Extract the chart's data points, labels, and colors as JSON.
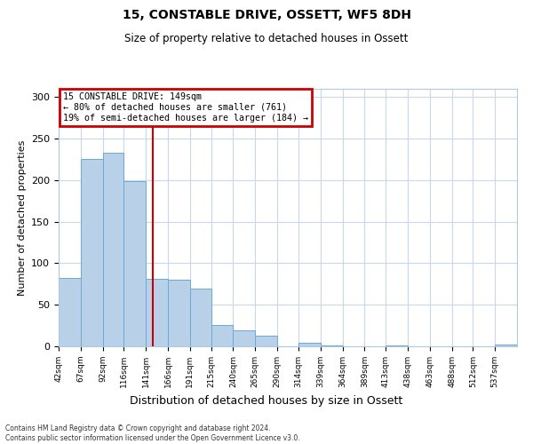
{
  "title": "15, CONSTABLE DRIVE, OSSETT, WF5 8DH",
  "subtitle": "Size of property relative to detached houses in Ossett",
  "xlabel": "Distribution of detached houses by size in Ossett",
  "ylabel": "Number of detached properties",
  "bar_edges": [
    42,
    67,
    92,
    116,
    141,
    166,
    191,
    215,
    240,
    265,
    290,
    314,
    339,
    364,
    389,
    413,
    438,
    463,
    488,
    512,
    537,
    562
  ],
  "bar_heights": [
    82,
    226,
    233,
    199,
    81,
    80,
    70,
    26,
    19,
    13,
    0,
    4,
    1,
    0,
    0,
    1,
    0,
    0,
    0,
    0,
    2
  ],
  "bar_color": "#b8d0e8",
  "bar_edge_color": "#6aaad4",
  "property_size": 149,
  "vline_color": "#cc0000",
  "annotation_box_text": "15 CONSTABLE DRIVE: 149sqm\n← 80% of detached houses are smaller (761)\n19% of semi-detached houses are larger (184) →",
  "annotation_box_color": "#cc0000",
  "annotation_box_fill": "#ffffff",
  "ylim": [
    0,
    310
  ],
  "yticks": [
    0,
    50,
    100,
    150,
    200,
    250,
    300
  ],
  "tick_labels": [
    "42sqm",
    "67sqm",
    "92sqm",
    "116sqm",
    "141sqm",
    "166sqm",
    "191sqm",
    "215sqm",
    "240sqm",
    "265sqm",
    "290sqm",
    "314sqm",
    "339sqm",
    "364sqm",
    "389sqm",
    "413sqm",
    "438sqm",
    "463sqm",
    "488sqm",
    "512sqm",
    "537sqm"
  ],
  "footnote": "Contains HM Land Registry data © Crown copyright and database right 2024.\nContains public sector information licensed under the Open Government Licence v3.0.",
  "background_color": "#ffffff",
  "grid_color": "#c8d8e8"
}
